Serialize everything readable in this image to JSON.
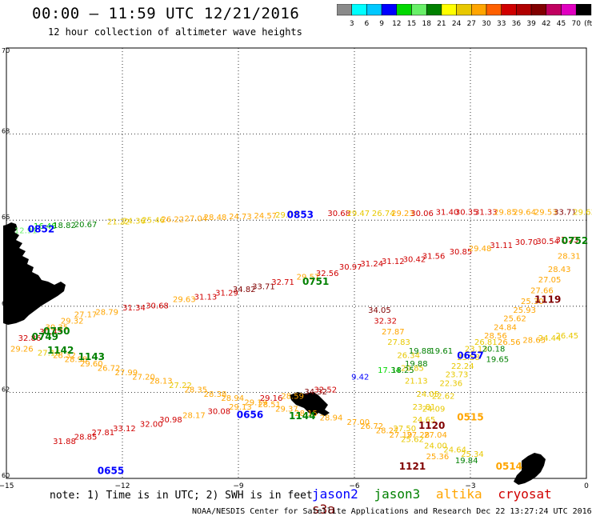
{
  "header": {
    "title": "00:00 – 11:59 UTC 12/21/2016",
    "subtitle": "12 hour collection of altimeter wave heights"
  },
  "colorbar": {
    "colors": [
      "#8a8a8a",
      "#00ffff",
      "#00c8ff",
      "#0000ff",
      "#00d800",
      "#68f068",
      "#008000",
      "#ffff00",
      "#e8c800",
      "#ffa500",
      "#ff6000",
      "#d00000",
      "#b00000",
      "#800000",
      "#c00060",
      "#e000c0",
      "#000000"
    ],
    "labels": [
      "3",
      "6",
      "9",
      "12",
      "15",
      "18",
      "21",
      "24",
      "27",
      "30",
      "33",
      "36",
      "39",
      "42",
      "45",
      "70"
    ],
    "unit": "(ft)"
  },
  "axes": {
    "lat_ticks": [
      "70",
      "68",
      "66",
      "64",
      "62",
      "60"
    ],
    "lon_ticks": [
      "−15",
      "−12",
      "−9",
      "−6",
      "−3",
      "0"
    ]
  },
  "tracks": [
    {
      "name": "north-track",
      "color": "#e8c800",
      "points": [
        {
          "lon": -14.5,
          "lat": 65.7,
          "v": "12.91",
          "c": "#68f068"
        },
        {
          "lon": -14.0,
          "lat": 65.8,
          "v": "16.48",
          "c": "#00d800"
        },
        {
          "lon": -13.5,
          "lat": 65.82,
          "v": "18.82",
          "c": "#008000"
        },
        {
          "lon": -12.95,
          "lat": 65.84,
          "v": "20.67",
          "c": "#008000"
        },
        {
          "lon": -12.1,
          "lat": 65.9,
          "v": "21.22",
          "c": "#e8c800"
        },
        {
          "lon": -11.7,
          "lat": 65.92,
          "v": "24.36",
          "c": "#e8c800"
        },
        {
          "lon": -11.2,
          "lat": 65.94,
          "v": "25.46",
          "c": "#e8c800"
        },
        {
          "lon": -10.7,
          "lat": 65.96,
          "v": "26.22",
          "c": "#ffa500"
        },
        {
          "lon": -10.1,
          "lat": 65.98,
          "v": "27.04",
          "c": "#ffa500"
        },
        {
          "lon": -9.6,
          "lat": 66.0,
          "v": "28.48",
          "c": "#ffa500"
        },
        {
          "lon": -8.95,
          "lat": 66.02,
          "v": "24.73",
          "c": "#ffa500"
        },
        {
          "lon": -8.3,
          "lat": 66.04,
          "v": "24.57",
          "c": "#ffa500"
        },
        {
          "lon": -7.75,
          "lat": 66.06,
          "v": "29.07",
          "c": "#e8c800"
        },
        {
          "lon": -6.4,
          "lat": 66.1,
          "v": "30.68",
          "c": "#d00000"
        },
        {
          "lon": -5.9,
          "lat": 66.1,
          "v": "29.47",
          "c": "#e8c800"
        },
        {
          "lon": -5.25,
          "lat": 66.1,
          "v": "26.74",
          "c": "#e8c800"
        },
        {
          "lon": -4.75,
          "lat": 66.1,
          "v": "29.23",
          "c": "#ffa500"
        },
        {
          "lon": -4.25,
          "lat": 66.1,
          "v": "30.06",
          "c": "#d00000"
        },
        {
          "lon": -3.6,
          "lat": 66.12,
          "v": "31.40",
          "c": "#d00000"
        },
        {
          "lon": -3.1,
          "lat": 66.12,
          "v": "30.35",
          "c": "#d00000"
        },
        {
          "lon": -2.6,
          "lat": 66.12,
          "v": "31.33",
          "c": "#d00000"
        },
        {
          "lon": -2.1,
          "lat": 66.12,
          "v": "29.85",
          "c": "#ffa500"
        },
        {
          "lon": -1.6,
          "lat": 66.12,
          "v": "29.64",
          "c": "#ffa500"
        },
        {
          "lon": -1.05,
          "lat": 66.12,
          "v": "29.53",
          "c": "#ffa500"
        },
        {
          "lon": -0.55,
          "lat": 66.12,
          "v": "33.71",
          "c": "#800000"
        },
        {
          "lon": -0.05,
          "lat": 66.12,
          "v": "29.63",
          "c": "#e8c800"
        }
      ]
    },
    {
      "name": "middle-track",
      "color": "#d00000",
      "points": [
        {
          "lon": -14.4,
          "lat": 63.2,
          "v": "32.86",
          "c": "#d00000"
        },
        {
          "lon": -13.85,
          "lat": 63.35,
          "v": "30.43",
          "c": "#d00000"
        },
        {
          "lon": -13.7,
          "lat": 63.45,
          "v": "30.35",
          "c": "#ffa500"
        },
        {
          "lon": -13.3,
          "lat": 63.6,
          "v": "29.32",
          "c": "#ffa500"
        },
        {
          "lon": -12.95,
          "lat": 63.75,
          "v": "27.17",
          "c": "#ffa500"
        },
        {
          "lon": -12.4,
          "lat": 63.8,
          "v": "28.79",
          "c": "#ffa500"
        },
        {
          "lon": -11.7,
          "lat": 63.9,
          "v": "31.34",
          "c": "#d00000"
        },
        {
          "lon": -11.1,
          "lat": 63.95,
          "v": "30.68",
          "c": "#d00000"
        },
        {
          "lon": -10.4,
          "lat": 64.1,
          "v": "29.63",
          "c": "#ffa500"
        },
        {
          "lon": -9.85,
          "lat": 64.15,
          "v": "31.13",
          "c": "#d00000"
        },
        {
          "lon": -9.3,
          "lat": 64.25,
          "v": "31.29",
          "c": "#d00000"
        },
        {
          "lon": -8.85,
          "lat": 64.33,
          "v": "34.82",
          "c": "#800000"
        },
        {
          "lon": -8.35,
          "lat": 64.4,
          "v": "33.71",
          "c": "#800000"
        },
        {
          "lon": -7.85,
          "lat": 64.5,
          "v": "32.71",
          "c": "#d00000"
        },
        {
          "lon": -7.2,
          "lat": 64.62,
          "v": "29.57",
          "c": "#ffa500"
        },
        {
          "lon": -6.7,
          "lat": 64.7,
          "v": "32.56",
          "c": "#d00000"
        },
        {
          "lon": -6.1,
          "lat": 64.85,
          "v": "30.97",
          "c": "#d00000"
        },
        {
          "lon": -5.55,
          "lat": 64.93,
          "v": "31.24",
          "c": "#d00000"
        },
        {
          "lon": -5.0,
          "lat": 64.98,
          "v": "31.12",
          "c": "#d00000"
        },
        {
          "lon": -4.45,
          "lat": 65.03,
          "v": "30.42",
          "c": "#d00000"
        },
        {
          "lon": -3.95,
          "lat": 65.1,
          "v": "31.56",
          "c": "#d00000"
        },
        {
          "lon": -3.25,
          "lat": 65.2,
          "v": "30.85",
          "c": "#d00000"
        },
        {
          "lon": -2.75,
          "lat": 65.28,
          "v": "29.48",
          "c": "#ffa500"
        },
        {
          "lon": -2.2,
          "lat": 65.35,
          "v": "31.11",
          "c": "#d00000"
        },
        {
          "lon": -1.55,
          "lat": 65.43,
          "v": "30.70",
          "c": "#d00000"
        },
        {
          "lon": -1.0,
          "lat": 65.45,
          "v": "30.54",
          "c": "#d00000"
        },
        {
          "lon": -0.5,
          "lat": 65.48,
          "v": "31.23",
          "c": "#d00000"
        }
      ]
    },
    {
      "name": "south-west-track",
      "color": "#ffa500",
      "points": [
        {
          "lon": -14.6,
          "lat": 62.95,
          "v": "29.26",
          "c": "#ffa500"
        },
        {
          "lon": -13.9,
          "lat": 62.85,
          "v": "27.16",
          "c": "#e8c800"
        },
        {
          "lon": -13.5,
          "lat": 62.8,
          "v": "28.32",
          "c": "#ffa500"
        },
        {
          "lon": -13.2,
          "lat": 62.7,
          "v": "28.98",
          "c": "#ffa500"
        },
        {
          "lon": -12.8,
          "lat": 62.6,
          "v": "29.60",
          "c": "#ffa500"
        },
        {
          "lon": -12.35,
          "lat": 62.5,
          "v": "26.72",
          "c": "#ffa500"
        },
        {
          "lon": -11.9,
          "lat": 62.4,
          "v": "27.99",
          "c": "#ffa500"
        },
        {
          "lon": -11.45,
          "lat": 62.3,
          "v": "27.20",
          "c": "#ffa500"
        },
        {
          "lon": -11.0,
          "lat": 62.2,
          "v": "28.13",
          "c": "#ffa500"
        },
        {
          "lon": -10.5,
          "lat": 62.1,
          "v": "27.22",
          "c": "#e8c800"
        },
        {
          "lon": -10.1,
          "lat": 62.0,
          "v": "28.35",
          "c": "#ffa500"
        },
        {
          "lon": -9.6,
          "lat": 61.9,
          "v": "28.38",
          "c": "#ffa500"
        },
        {
          "lon": -9.15,
          "lat": 61.8,
          "v": "28.94",
          "c": "#ffa500"
        },
        {
          "lon": -8.55,
          "lat": 61.7,
          "v": "29.19",
          "c": "#ffa500"
        },
        {
          "lon": -8.15,
          "lat": 61.8,
          "v": "29.16",
          "c": "#d00000"
        },
        {
          "lon": -7.6,
          "lat": 61.85,
          "v": "28.59",
          "c": "#ffa500"
        },
        {
          "lon": -7.0,
          "lat": 61.95,
          "v": "34.32",
          "c": "#800000"
        },
        {
          "lon": -6.75,
          "lat": 62.0,
          "v": "32.52",
          "c": "#d00000"
        }
      ]
    },
    {
      "name": "south-track",
      "color": "#e8c800",
      "points": [
        {
          "lon": -13.5,
          "lat": 60.8,
          "v": "31.88",
          "c": "#d00000"
        },
        {
          "lon": -12.95,
          "lat": 60.9,
          "v": "28.85",
          "c": "#d00000"
        },
        {
          "lon": -12.5,
          "lat": 61.0,
          "v": "27.81",
          "c": "#d00000"
        },
        {
          "lon": -11.95,
          "lat": 61.1,
          "v": "33.12",
          "c": "#d00000"
        },
        {
          "lon": -11.25,
          "lat": 61.2,
          "v": "32.00",
          "c": "#d00000"
        },
        {
          "lon": -10.75,
          "lat": 61.3,
          "v": "30.98",
          "c": "#d00000"
        },
        {
          "lon": -10.15,
          "lat": 61.4,
          "v": "28.17",
          "c": "#ffa500"
        },
        {
          "lon": -9.5,
          "lat": 61.5,
          "v": "30.08",
          "c": "#d00000"
        },
        {
          "lon": -8.95,
          "lat": 61.6,
          "v": "29.13",
          "c": "#ffa500"
        },
        {
          "lon": -8.2,
          "lat": 61.65,
          "v": "28.51",
          "c": "#ffa500"
        },
        {
          "lon": -7.75,
          "lat": 61.55,
          "v": "29.37",
          "c": "#ffa500"
        },
        {
          "lon": -7.25,
          "lat": 61.45,
          "v": "28.15",
          "c": "#ffa500"
        },
        {
          "lon": -6.6,
          "lat": 61.35,
          "v": "28.94",
          "c": "#ffa500"
        },
        {
          "lon": -5.9,
          "lat": 61.25,
          "v": "27.00",
          "c": "#ffa500"
        },
        {
          "lon": -5.55,
          "lat": 61.15,
          "v": "26.72",
          "c": "#ffa500"
        },
        {
          "lon": -5.15,
          "lat": 61.05,
          "v": "28.27",
          "c": "#ffa500"
        },
        {
          "lon": -4.8,
          "lat": 60.95,
          "v": "27.19",
          "c": "#ffa500"
        },
        {
          "lon": -4.35,
          "lat": 60.95,
          "v": "27.28",
          "c": "#ffa500"
        },
        {
          "lon": -3.9,
          "lat": 60.95,
          "v": "27.04",
          "c": "#ffa500"
        }
      ]
    },
    {
      "name": "diagonal-ne-track",
      "color": "#e8c800",
      "points": [
        {
          "lon": -4.2,
          "lat": 61.6,
          "v": "23.81",
          "c": "#e8c800"
        },
        {
          "lon": -3.95,
          "lat": 61.55,
          "v": "24.09",
          "c": "#e8c800"
        },
        {
          "lon": -4.1,
          "lat": 61.9,
          "v": "24.05",
          "c": "#e8c800"
        },
        {
          "lon": -3.7,
          "lat": 61.85,
          "v": "22.62",
          "c": "#e8c800"
        },
        {
          "lon": -3.5,
          "lat": 62.15,
          "v": "22.36",
          "c": "#e8c800"
        },
        {
          "lon": -3.35,
          "lat": 62.35,
          "v": "23.73",
          "c": "#e8c800"
        },
        {
          "lon": -3.2,
          "lat": 62.55,
          "v": "22.24",
          "c": "#e8c800"
        },
        {
          "lon": -3.05,
          "lat": 62.75,
          "v": "23.58",
          "c": "#e8c800"
        },
        {
          "lon": -2.85,
          "lat": 62.95,
          "v": "23.13",
          "c": "#e8c800"
        },
        {
          "lon": -2.6,
          "lat": 63.1,
          "v": "26.81",
          "c": "#e8c800"
        },
        {
          "lon": -2.35,
          "lat": 63.25,
          "v": "28.56",
          "c": "#ffa500"
        },
        {
          "lon": -2.1,
          "lat": 63.45,
          "v": "24.84",
          "c": "#ffa500"
        },
        {
          "lon": -1.85,
          "lat": 63.65,
          "v": "25.62",
          "c": "#ffa500"
        },
        {
          "lon": -1.6,
          "lat": 63.85,
          "v": "25.93",
          "c": "#ffa500"
        },
        {
          "lon": -1.4,
          "lat": 64.05,
          "v": "25.30",
          "c": "#ffa500"
        },
        {
          "lon": -1.15,
          "lat": 64.3,
          "v": "27.66",
          "c": "#ffa500"
        },
        {
          "lon": -0.95,
          "lat": 64.55,
          "v": "27.05",
          "c": "#ffa500"
        },
        {
          "lon": -0.7,
          "lat": 64.8,
          "v": "28.43",
          "c": "#ffa500"
        },
        {
          "lon": -0.45,
          "lat": 65.1,
          "v": "28.31",
          "c": "#ffa500"
        }
      ]
    },
    {
      "name": "diagonal-e-track",
      "color": "#e8c800",
      "points": [
        {
          "lon": -3.1,
          "lat": 60.35,
          "v": "19.84",
          "c": "#008000"
        },
        {
          "lon": -2.95,
          "lat": 60.5,
          "v": "25.34",
          "c": "#e8c800"
        },
        {
          "lon": -3.4,
          "lat": 60.6,
          "v": "24.64",
          "c": "#e8c800"
        },
        {
          "lon": -3.85,
          "lat": 60.45,
          "v": "25.36",
          "c": "#ffa500"
        },
        {
          "lon": -3.9,
          "lat": 60.7,
          "v": "24.00",
          "c": "#e8c800"
        },
        {
          "lon": -4.5,
          "lat": 60.85,
          "v": "25.62",
          "c": "#e8c800"
        },
        {
          "lon": -4.7,
          "lat": 61.1,
          "v": "27.50",
          "c": "#e8c800"
        },
        {
          "lon": -4.2,
          "lat": 61.3,
          "v": "24.65",
          "c": "#e8c800"
        },
        {
          "lon": -4.4,
          "lat": 62.2,
          "v": "21.13",
          "c": "#e8c800"
        },
        {
          "lon": -4.5,
          "lat": 62.5,
          "v": "20.85",
          "c": "#e8c800"
        },
        {
          "lon": -4.6,
          "lat": 62.8,
          "v": "26.34",
          "c": "#e8c800"
        },
        {
          "lon": -4.85,
          "lat": 63.1,
          "v": "27.83",
          "c": "#e8c800"
        },
        {
          "lon": -5.0,
          "lat": 63.35,
          "v": "27.87",
          "c": "#ffa500"
        },
        {
          "lon": -5.2,
          "lat": 63.6,
          "v": "32.32",
          "c": "#d00000"
        },
        {
          "lon": -5.35,
          "lat": 63.85,
          "v": "34.05",
          "c": "#800000"
        },
        {
          "lon": -2.0,
          "lat": 63.1,
          "v": "26.56",
          "c": "#ffa500"
        },
        {
          "lon": -1.35,
          "lat": 63.15,
          "v": "28.65",
          "c": "#ffa500"
        },
        {
          "lon": -0.95,
          "lat": 63.2,
          "v": "24.44",
          "c": "#e8c800"
        },
        {
          "lon": -0.5,
          "lat": 63.25,
          "v": "26.45",
          "c": "#e8c800"
        }
      ]
    },
    {
      "name": "green-values",
      "color": "#008000",
      "points": [
        {
          "lon": -5.1,
          "lat": 62.45,
          "v": "17.34",
          "c": "#00d800"
        },
        {
          "lon": -4.75,
          "lat": 62.45,
          "v": "18.25",
          "c": "#008000"
        },
        {
          "lon": -4.4,
          "lat": 62.6,
          "v": "19.88",
          "c": "#008000"
        },
        {
          "lon": -4.3,
          "lat": 62.9,
          "v": "19.88",
          "c": "#008000"
        },
        {
          "lon": -3.75,
          "lat": 62.9,
          "v": "19.61",
          "c": "#008000"
        },
        {
          "lon": -2.3,
          "lat": 62.7,
          "v": "19.65",
          "c": "#008000"
        },
        {
          "lon": -2.4,
          "lat": 62.95,
          "v": "20.18",
          "c": "#008000"
        },
        {
          "lon": -5.85,
          "lat": 62.3,
          "v": "9.42",
          "c": "#0000ff"
        }
      ]
    }
  ],
  "time_labels": [
    {
      "lon": -14.1,
      "lat": 65.72,
      "v": "0852",
      "c": "#0000ff"
    },
    {
      "lon": -7.4,
      "lat": 66.05,
      "v": "0853",
      "c": "#0000ff"
    },
    {
      "lon": -7.0,
      "lat": 64.5,
      "v": "0751",
      "c": "#008000"
    },
    {
      "lon": -13.7,
      "lat": 63.35,
      "v": "0750",
      "c": "#008000"
    },
    {
      "lon": -14.0,
      "lat": 63.22,
      "v": "0749",
      "c": "#008000"
    },
    {
      "lon": -13.6,
      "lat": 62.9,
      "v": "1142",
      "c": "#008000"
    },
    {
      "lon": -12.8,
      "lat": 62.75,
      "v": "1143",
      "c": "#008000"
    },
    {
      "lon": -0.3,
      "lat": 65.45,
      "v": "0752",
      "c": "#008000"
    },
    {
      "lon": -1.0,
      "lat": 64.08,
      "v": "1119",
      "c": "#800000"
    },
    {
      "lon": -3.0,
      "lat": 62.78,
      "v": "0657",
      "c": "#0000ff"
    },
    {
      "lon": -8.7,
      "lat": 61.4,
      "v": "0656",
      "c": "#0000ff"
    },
    {
      "lon": -7.35,
      "lat": 61.38,
      "v": "1144",
      "c": "#008000"
    },
    {
      "lon": -4.0,
      "lat": 61.15,
      "v": "1120",
      "c": "#800000"
    },
    {
      "lon": -3.0,
      "lat": 61.35,
      "v": "0515",
      "c": "#ffa500"
    },
    {
      "lon": -4.5,
      "lat": 60.2,
      "v": "1121",
      "c": "#800000"
    },
    {
      "lon": -2.0,
      "lat": 60.2,
      "v": "0514",
      "c": "#ffa500"
    },
    {
      "lon": -12.3,
      "lat": 60.1,
      "v": "0655",
      "c": "#0000ff"
    }
  ],
  "footer": {
    "note": "note:  1) Time is in UTC;  2) SWH is in feet",
    "satellites": [
      {
        "name": "jason2",
        "color": "#0000ff"
      },
      {
        "name": "jason3",
        "color": "#008000"
      },
      {
        "name": "altika",
        "color": "#ffa500"
      },
      {
        "name": "cryosat",
        "color": "#d00000"
      },
      {
        "name": "s3a",
        "color": "#800000"
      }
    ],
    "credit": "NOAA/NESDIS Center for Satellite Applications and Research    Dec 22 13:27:24 UTC 2016"
  }
}
